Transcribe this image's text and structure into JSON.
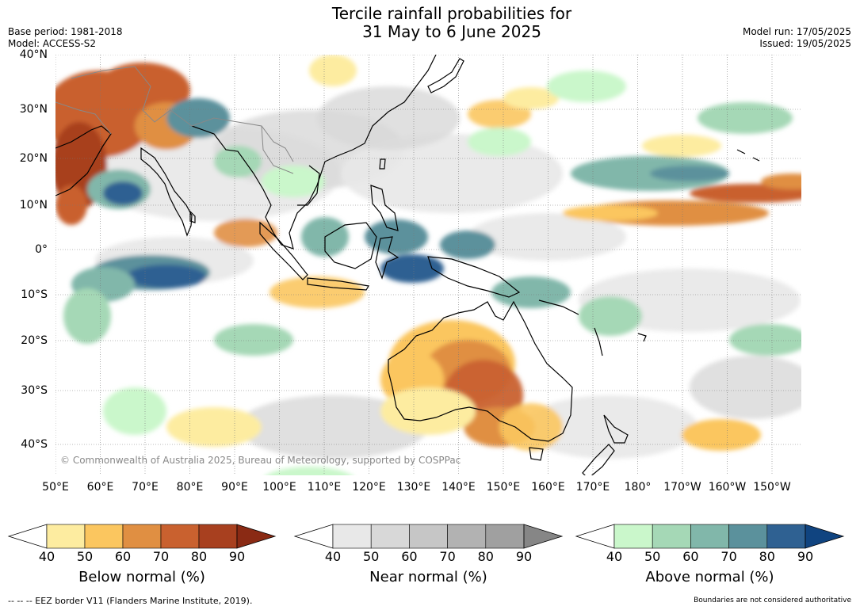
{
  "title": {
    "line1": "Tercile rainfall probabilities for",
    "line2": "31 May to 6 June 2025"
  },
  "meta": {
    "base_period": "Base period: 1981-2018",
    "model": "Model: ACCESS-S2",
    "model_run": "Model run: 17/05/2025",
    "issued": "Issued: 19/05/2025"
  },
  "map": {
    "lat_labels": [
      "40°N",
      "30°N",
      "20°N",
      "10°N",
      "0°",
      "10°S",
      "20°S",
      "30°S",
      "40°S"
    ],
    "lon_labels": [
      "50°E",
      "60°E",
      "70°E",
      "80°E",
      "90°E",
      "100°E",
      "110°E",
      "120°E",
      "130°E",
      "140°E",
      "150°E",
      "160°E",
      "170°E",
      "180°",
      "170°W",
      "160°W",
      "150°W"
    ],
    "copyright": "© Commonwealth of Australia 2025, Bureau of Meteorology, supported by COSPPac",
    "colors": {
      "below": [
        "#fdeca0",
        "#fbc65f",
        "#e08f42",
        "#c9612f",
        "#a8401f",
        "#8a2a14"
      ],
      "near": [
        "#e8e8e8",
        "#d8d8d8",
        "#c6c6c6",
        "#b2b2b2",
        "#a0a0a0",
        "#868686"
      ],
      "above": [
        "#caf7cb",
        "#a5d8b6",
        "#81b7aa",
        "#5b919c",
        "#2f6192",
        "#104480"
      ],
      "land_outline": "#000000",
      "border_outline": "#888888"
    }
  },
  "legend": {
    "ticks": [
      "40",
      "50",
      "60",
      "70",
      "80",
      "90"
    ],
    "below_title": "Below normal (%)",
    "near_title": "Near normal (%)",
    "above_title": "Above normal (%)"
  },
  "footer": {
    "eez": "--  --  -- EEZ border V11 (Flanders Marine Institute, 2019).",
    "disclaimer": "Boundaries are not considered authoritative"
  }
}
